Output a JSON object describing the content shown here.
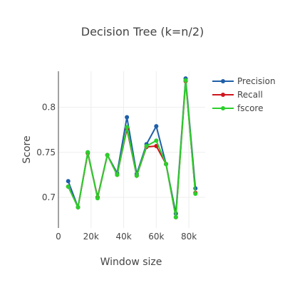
{
  "chart_data": {
    "type": "line",
    "title": "Decision Tree (k=n/2)",
    "xlabel": "Window size",
    "ylabel": "Score",
    "xlim": [
      0,
      90000
    ],
    "ylim": [
      0.666,
      0.84
    ],
    "x_ticks": [
      0,
      20000,
      40000,
      60000,
      80000
    ],
    "x_tick_labels": [
      "0",
      "20k",
      "40k",
      "60k",
      "80k"
    ],
    "y_ticks": [
      0.7,
      0.75,
      0.8
    ],
    "y_tick_labels": [
      "0.7",
      "0.75",
      "0.8"
    ],
    "grid": true,
    "legend_position": "top-right",
    "x": [
      6000,
      12000,
      18000,
      24000,
      30000,
      36000,
      42000,
      48000,
      54000,
      60000,
      66000,
      72000,
      78000,
      84000
    ],
    "series": [
      {
        "name": "Precision",
        "color": "#1f5fa8",
        "values": [
          0.718,
          0.689,
          0.75,
          0.7,
          0.747,
          0.727,
          0.789,
          0.726,
          0.759,
          0.779,
          0.737,
          0.682,
          0.832,
          0.71
        ]
      },
      {
        "name": "Recall",
        "color": "#d0141c",
        "values": [
          0.712,
          0.689,
          0.749,
          0.7,
          0.747,
          0.725,
          0.776,
          0.724,
          0.756,
          0.757,
          0.737,
          0.678,
          0.829,
          0.705
        ]
      },
      {
        "name": "fscore",
        "color": "#2bcf2b",
        "values": [
          0.712,
          0.689,
          0.75,
          0.699,
          0.747,
          0.725,
          0.778,
          0.724,
          0.757,
          0.763,
          0.737,
          0.678,
          0.83,
          0.704
        ]
      }
    ]
  }
}
